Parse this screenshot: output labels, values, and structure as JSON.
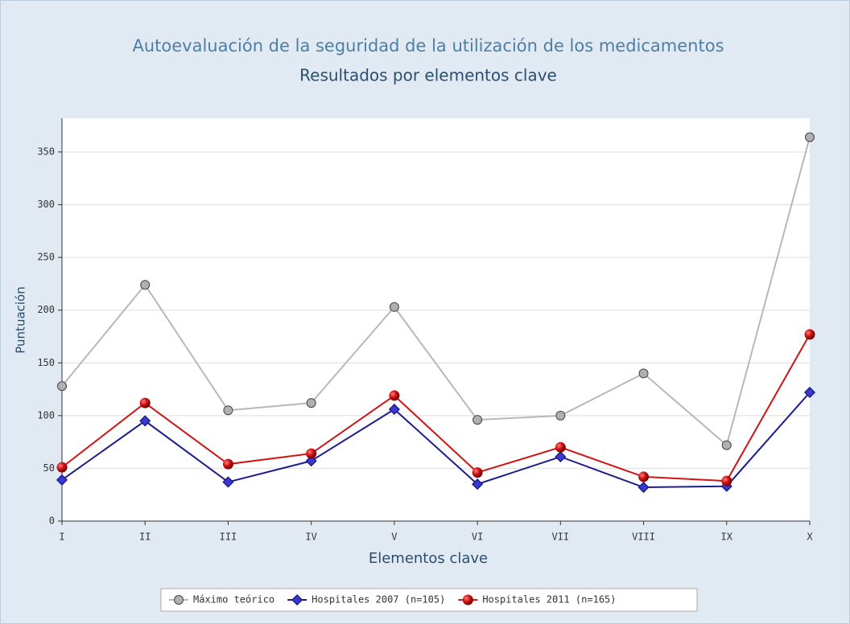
{
  "chart_data": {
    "type": "line",
    "title": "Autoevaluación de la seguridad de la utilización de los medicamentos",
    "subtitle": "Resultados por elementos clave",
    "x_label": "Elementos clave",
    "y_label": "Puntuación",
    "categories": [
      "I",
      "II",
      "III",
      "IV",
      "V",
      "VI",
      "VII",
      "VIII",
      "IX",
      "X"
    ],
    "series": [
      {
        "name": "Máximo teórico",
        "color": "#b8b8b8",
        "marker": "circle",
        "values": [
          128,
          224,
          105,
          112,
          203,
          96,
          100,
          140,
          72,
          364
        ]
      },
      {
        "name": "Hospitales 2007 (n=105)",
        "color": "#1c1c8c",
        "marker": "diamond",
        "values": [
          39,
          95,
          37,
          57,
          106,
          35,
          61,
          32,
          33,
          122
        ]
      },
      {
        "name": "Hospitales 2011 (n=165)",
        "color": "#d01414",
        "marker": "sphere",
        "values": [
          51,
          112,
          54,
          64,
          119,
          46,
          70,
          42,
          38,
          177
        ]
      }
    ],
    "ylim": [
      0,
      382
    ],
    "yticks": [
      0,
      50,
      100,
      150,
      200,
      250,
      300,
      350
    ],
    "grid": true,
    "legend": "bottom"
  }
}
